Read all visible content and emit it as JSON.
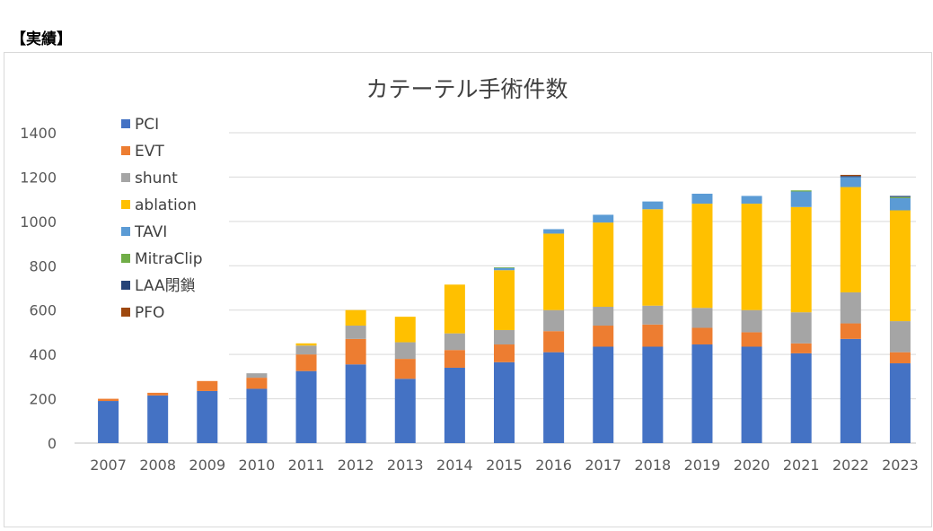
{
  "heading": "【実績】",
  "chart_data": {
    "type": "bar",
    "stacked": true,
    "title": "カテーテル手術件数",
    "categories": [
      "2007",
      "2008",
      "2009",
      "2010",
      "2011",
      "2012",
      "2013",
      "2014",
      "2015",
      "2016",
      "2017",
      "2018",
      "2019",
      "2020",
      "2021",
      "2022",
      "2023"
    ],
    "ylim": [
      0,
      1400
    ],
    "yticks": [
      0,
      200,
      400,
      600,
      800,
      1000,
      1200,
      1400
    ],
    "grid": true,
    "legend_position": "top-left",
    "series": [
      {
        "name": "PCI",
        "color": "#4472c4",
        "values": [
          190,
          215,
          235,
          245,
          325,
          355,
          290,
          340,
          365,
          410,
          435,
          435,
          445,
          435,
          405,
          470,
          360
        ]
      },
      {
        "name": "EVT",
        "color": "#ed7d31",
        "values": [
          10,
          12,
          45,
          50,
          75,
          115,
          90,
          80,
          80,
          95,
          95,
          100,
          75,
          65,
          45,
          70,
          50
        ]
      },
      {
        "name": "shunt",
        "color": "#a5a5a5",
        "values": [
          0,
          0,
          0,
          20,
          40,
          60,
          75,
          75,
          65,
          95,
          85,
          85,
          90,
          100,
          140,
          140,
          140
        ]
      },
      {
        "name": "ablation",
        "color": "#ffc000",
        "values": [
          0,
          0,
          0,
          0,
          10,
          70,
          115,
          220,
          270,
          345,
          380,
          435,
          470,
          480,
          475,
          475,
          500
        ]
      },
      {
        "name": "TAVI",
        "color": "#5b9bd5",
        "values": [
          0,
          0,
          0,
          0,
          0,
          0,
          0,
          0,
          10,
          20,
          35,
          35,
          45,
          35,
          70,
          45,
          55
        ]
      },
      {
        "name": "MitraClip",
        "color": "#70ad47",
        "values": [
          0,
          0,
          0,
          0,
          0,
          0,
          0,
          0,
          3,
          0,
          0,
          0,
          0,
          0,
          5,
          0,
          5
        ]
      },
      {
        "name": "LAA閉鎖",
        "color": "#264478",
        "values": [
          0,
          0,
          0,
          0,
          0,
          0,
          0,
          0,
          0,
          0,
          0,
          0,
          0,
          0,
          0,
          5,
          5
        ]
      },
      {
        "name": "PFO",
        "color": "#9e480e",
        "values": [
          0,
          0,
          0,
          0,
          0,
          0,
          0,
          0,
          0,
          0,
          0,
          0,
          0,
          0,
          0,
          5,
          0
        ]
      }
    ]
  }
}
